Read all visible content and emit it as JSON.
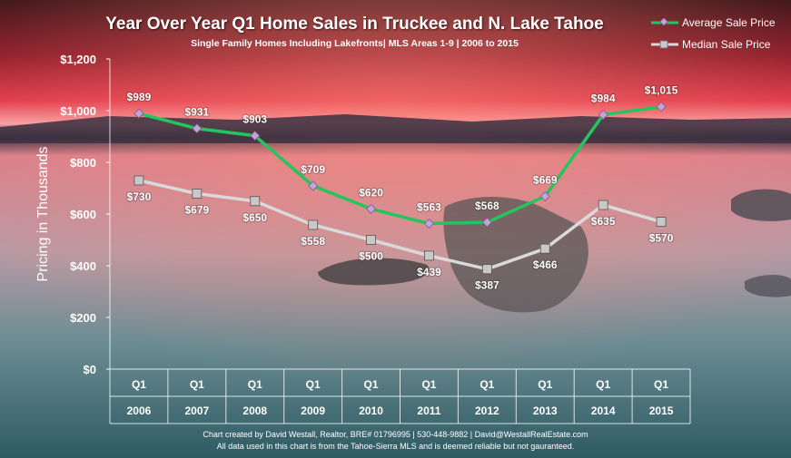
{
  "chart_data": {
    "type": "line",
    "title": "Year Over Year Q1 Home Sales in Truckee and N. Lake Tahoe",
    "subtitle": "Single Family Homes Including Lakefronts| MLS Areas 1-9 | 2006 to 2015",
    "ylabel": "Pricing in Thousands",
    "xlabel": "",
    "ylim": [
      0,
      1200
    ],
    "yticks": [
      "$0",
      "$200",
      "$400",
      "$600",
      "$800",
      "$1,000",
      "$1,200"
    ],
    "ytick_values": [
      0,
      200,
      400,
      600,
      800,
      1000,
      1200
    ],
    "categories": [
      {
        "quarter": "Q1",
        "year": "2006"
      },
      {
        "quarter": "Q1",
        "year": "2007"
      },
      {
        "quarter": "Q1",
        "year": "2008"
      },
      {
        "quarter": "Q1",
        "year": "2009"
      },
      {
        "quarter": "Q1",
        "year": "2010"
      },
      {
        "quarter": "Q1",
        "year": "2011"
      },
      {
        "quarter": "Q1",
        "year": "2012"
      },
      {
        "quarter": "Q1",
        "year": "2013"
      },
      {
        "quarter": "Q1",
        "year": "2014"
      },
      {
        "quarter": "Q1",
        "year": "2015"
      }
    ],
    "series": [
      {
        "name": "Average Sale Price",
        "color": "#22c55e",
        "marker": "diamond",
        "values": [
          989,
          931,
          903,
          709,
          620,
          563,
          568,
          669,
          984,
          1015
        ],
        "labels": [
          "$989",
          "$931",
          "$903",
          "$709",
          "$620",
          "$563",
          "$568",
          "$669",
          "$984",
          "$1,015"
        ]
      },
      {
        "name": "Median Sale Price",
        "color": "#d9d9d9",
        "marker": "square",
        "values": [
          730,
          679,
          650,
          558,
          500,
          439,
          387,
          466,
          635,
          570
        ],
        "labels": [
          "$730",
          "$679",
          "$650",
          "$558",
          "$500",
          "$439",
          "$387",
          "$466",
          "$635",
          "$570"
        ]
      }
    ],
    "legend_position": "top-right",
    "grid": false
  },
  "footer": {
    "line1": "Chart created by David Westall, Realtor, BRE# 01796995 | 530-448-9882 | David@WestallRealEstate.com",
    "line2": "All data used in this chart is from the Tahoe-Sierra MLS and is deemed reliable but  not gauranteed."
  }
}
